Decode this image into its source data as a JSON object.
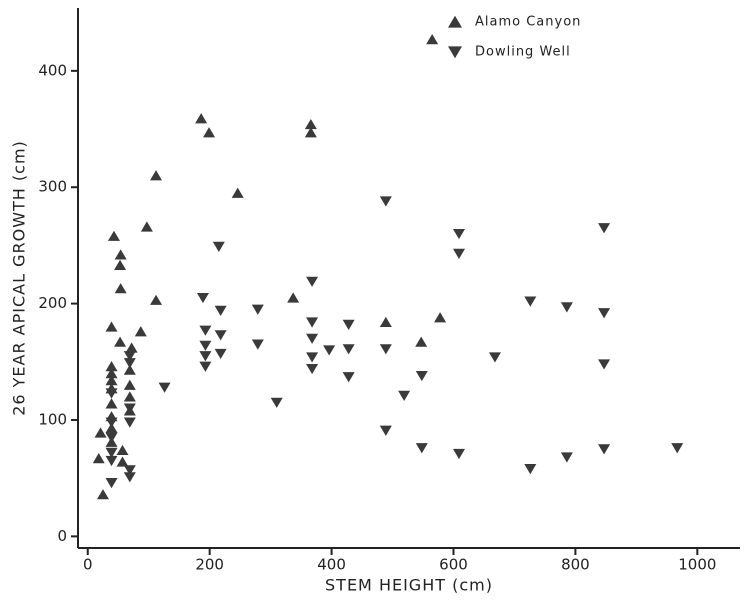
{
  "chart_data": {
    "type": "scatter",
    "x_label": "STEM HEIGHT (cm)",
    "y_label": "26 YEAR APICAL GROWTH (cm)",
    "xlim": [
      -16,
      1070
    ],
    "ylim": [
      -10,
      454
    ],
    "xticks": [
      0,
      200,
      400,
      600,
      800,
      1000
    ],
    "yticks": [
      0,
      100,
      200,
      300,
      400
    ],
    "legend": "upper right",
    "series": [
      {
        "name": "Alamo Canyon",
        "color": "#3a3a3a",
        "marker": "triangle-up",
        "x": [
          565,
          186,
          199,
          366,
          366,
          246,
          112,
          97,
          53,
          43,
          54,
          54,
          112,
          337,
          87,
          39,
          53,
          72,
          69,
          69,
          69,
          69,
          39,
          39,
          39,
          39,
          39,
          39,
          39,
          39,
          21,
          18,
          57,
          57,
          25,
          489,
          547,
          578
        ],
        "values": [
          427,
          359,
          347,
          354,
          347,
          295,
          310,
          266,
          233,
          258,
          242,
          213,
          203,
          205,
          176,
          180,
          167,
          162,
          143,
          130,
          120,
          108,
          146,
          140,
          134,
          127,
          114,
          103,
          93,
          81,
          89,
          67,
          74,
          64,
          36,
          184,
          167,
          188
        ]
      },
      {
        "name": "Dowling Well",
        "color": "#3a3a3a",
        "marker": "triangle-down",
        "x": [
          489,
          609,
          609,
          847,
          215,
          368,
          189,
          218,
          279,
          193,
          218,
          368,
          368,
          428,
          726,
          786,
          847,
          193,
          193,
          193,
          218,
          279,
          368,
          368,
          396,
          428,
          489,
          428,
          548,
          668,
          847,
          126,
          310,
          519,
          489,
          548,
          609,
          726,
          786,
          847,
          967,
          69,
          69,
          39,
          39,
          39,
          69,
          69,
          69,
          69,
          39,
          39,
          39
        ],
        "values": [
          288,
          260,
          243,
          265,
          249,
          219,
          205,
          194,
          195,
          177,
          173,
          184,
          170,
          182,
          202,
          197,
          192,
          164,
          155,
          146,
          157,
          165,
          154,
          144,
          160,
          161,
          161,
          137,
          138,
          154,
          148,
          128,
          115,
          121,
          91,
          76,
          71,
          58,
          68,
          75,
          76,
          155,
          149,
          123,
          98,
          85,
          110,
          98,
          57,
          51,
          72,
          65,
          46
        ]
      }
    ]
  }
}
